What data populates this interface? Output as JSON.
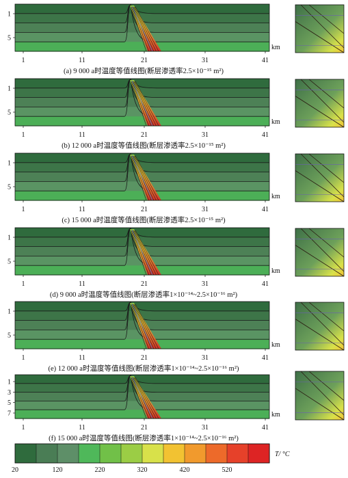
{
  "chart_data": [
    {
      "type": "heatmap",
      "caption": "(a) 9 000 a时温度等值线图(断层渗透率2.5×10⁻¹⁵ m²)",
      "x_ticks": [
        "1",
        "11",
        "21",
        "31",
        "41"
      ],
      "x_unit": "km",
      "y_ticks": [
        "1",
        "5"
      ]
    },
    {
      "type": "heatmap",
      "caption": "(b) 12 000 a时温度等值线图(断层渗透率2.5×10⁻¹⁵ m²)",
      "x_ticks": [
        "1",
        "11",
        "21",
        "31",
        "41"
      ],
      "x_unit": "km",
      "y_ticks": [
        "1",
        "5"
      ]
    },
    {
      "type": "heatmap",
      "caption": "(c) 15 000 a时温度等值线图(断层渗透率2.5×10⁻¹⁵ m²)",
      "x_ticks": [
        "1",
        "11",
        "21",
        "31",
        "41"
      ],
      "x_unit": "km",
      "y_ticks": [
        "1",
        "5"
      ]
    },
    {
      "type": "heatmap",
      "caption": "(d) 9 000 a时温度等值线图(断层渗透率1×10⁻¹⁴~2.5×10⁻¹⁶ m²)",
      "x_ticks": [
        "1",
        "11",
        "21",
        "31",
        "41"
      ],
      "x_unit": "km",
      "y_ticks": [
        "1",
        "5"
      ]
    },
    {
      "type": "heatmap",
      "caption": "(e) 12 000 a时温度等值线图(断层渗透率1×10⁻¹⁴~2.5×10⁻¹⁶ m²)",
      "x_ticks": [
        "1",
        "11",
        "21",
        "31",
        "41"
      ],
      "x_unit": "km",
      "y_ticks": [
        "1",
        "5"
      ]
    },
    {
      "type": "heatmap",
      "caption": "(f) 15 000 a时温度等值线图(断层渗透率1×10⁻¹⁴~2.5×10⁻¹⁶ m²)",
      "x_ticks": [
        "1",
        "11",
        "21",
        "31",
        "41"
      ],
      "x_unit": "km",
      "y_ticks": [
        "1",
        "3",
        "5",
        "7"
      ]
    }
  ],
  "colorbar": {
    "label": "T/ °C",
    "tick_labels": [
      "20",
      "120",
      "220",
      "320",
      "420",
      "520"
    ],
    "colors": [
      "#2f6b3d",
      "#4a7d55",
      "#5e8f68",
      "#4fb85a",
      "#71c048",
      "#9bcd45",
      "#d8e14a",
      "#f2c232",
      "#f19a2d",
      "#ed6a2a",
      "#e6412a",
      "#dd2424"
    ]
  }
}
